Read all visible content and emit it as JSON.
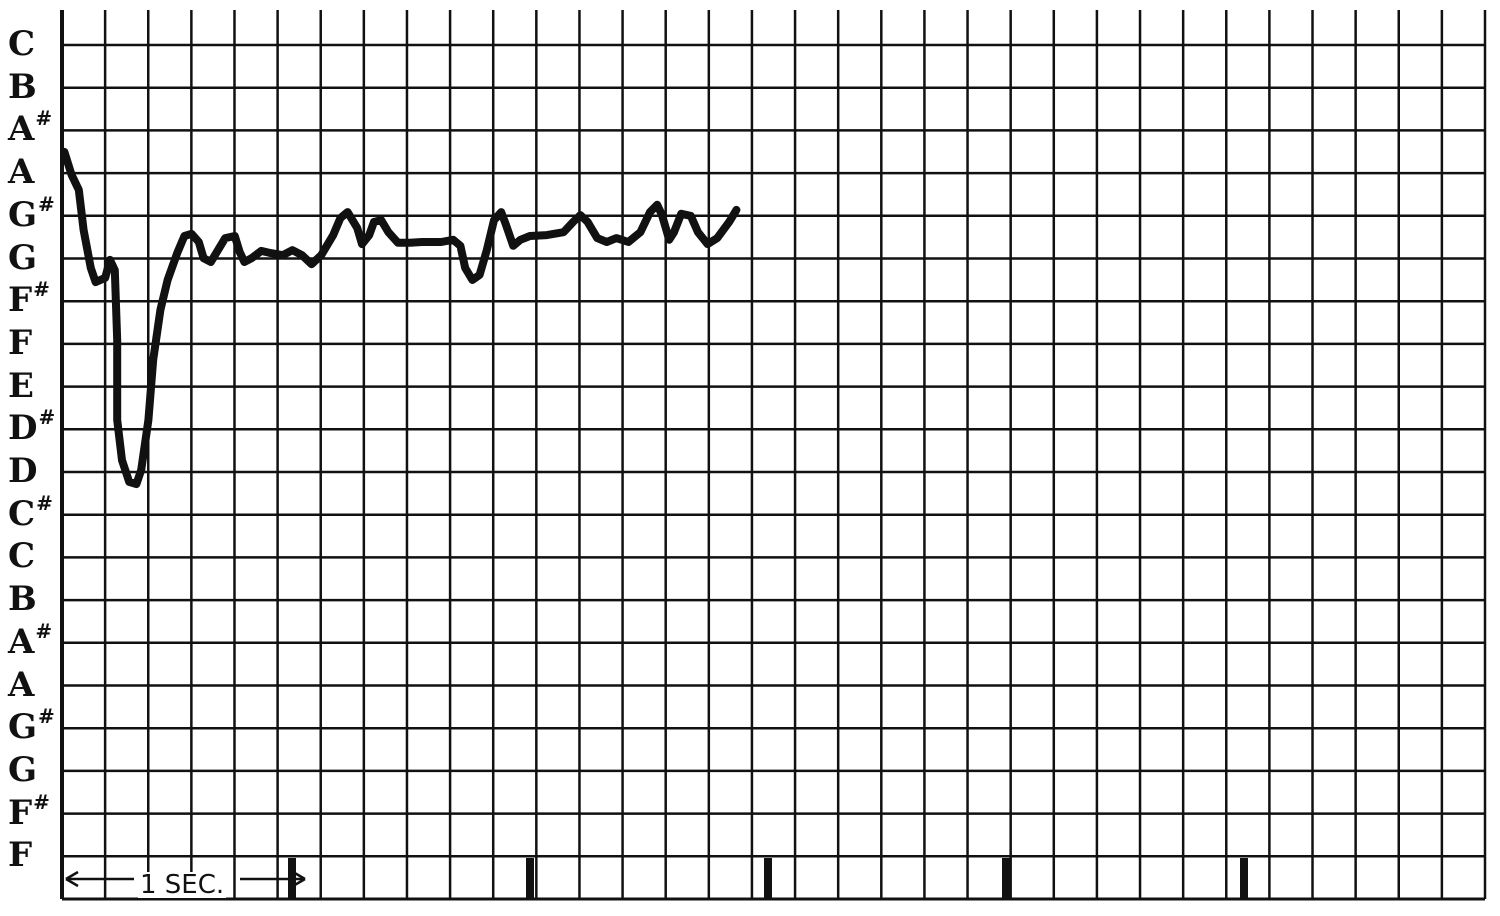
{
  "chart_data": {
    "type": "line",
    "title": "",
    "xlabel": "",
    "ylabel": "",
    "y_tick_labels": [
      "C",
      "B",
      "A#",
      "A",
      "G#",
      "G",
      "F#",
      "F",
      "E",
      "D#",
      "D",
      "C#",
      "C",
      "B",
      "A#",
      "A",
      "G#",
      "G",
      "F#",
      "F"
    ],
    "y_scale_note": "semitones above the lowest F (F = 0, top C = 19)",
    "ylim": [
      0,
      19
    ],
    "xlim_seconds": [
      0,
      5.93
    ],
    "time_scale_label": "1 SEC.",
    "second_markers": [
      1,
      2,
      3,
      4,
      5
    ],
    "grid": true,
    "line_color": "#111111",
    "series": [
      {
        "x": [
          0.01,
          0.04,
          0.07,
          0.09,
          0.12,
          0.14,
          0.18,
          0.2,
          0.22,
          0.23,
          0.23,
          0.25,
          0.28,
          0.31,
          0.33,
          0.36,
          0.38,
          0.41,
          0.44,
          0.48,
          0.51,
          0.54,
          0.57,
          0.59,
          0.62,
          0.65,
          0.68,
          0.72,
          0.74,
          0.76,
          0.79,
          0.83,
          0.87,
          0.92,
          0.96,
          1.0,
          1.04,
          1.08,
          1.13,
          1.16,
          1.19,
          1.23,
          1.25,
          1.28,
          1.3,
          1.33,
          1.36,
          1.4,
          1.45,
          1.5,
          1.58,
          1.63,
          1.66,
          1.68,
          1.71,
          1.74,
          1.77,
          1.8,
          1.83,
          1.85,
          1.88,
          1.91,
          1.95,
          2.02,
          2.09,
          2.13,
          2.16,
          2.19,
          2.23,
          2.27,
          2.31,
          2.36,
          2.41,
          2.45,
          2.48,
          2.5,
          2.53,
          2.55,
          2.58,
          2.62,
          2.65,
          2.69,
          2.73,
          2.78,
          2.81
        ],
        "y": [
          16.49,
          15.95,
          15.6,
          14.66,
          13.77,
          13.44,
          13.54,
          13.96,
          13.72,
          12.08,
          10.21,
          9.27,
          8.76,
          8.71,
          9.04,
          10.21,
          11.62,
          12.79,
          13.49,
          14.12,
          14.52,
          14.57,
          14.38,
          14.0,
          13.91,
          14.19,
          14.47,
          14.52,
          14.15,
          13.91,
          14.0,
          14.17,
          14.12,
          14.07,
          14.19,
          14.07,
          13.86,
          14.07,
          14.54,
          14.94,
          15.08,
          14.71,
          14.33,
          14.54,
          14.85,
          14.89,
          14.61,
          14.36,
          14.36,
          14.38,
          14.38,
          14.43,
          14.29,
          13.77,
          13.49,
          13.61,
          14.19,
          14.89,
          15.08,
          14.78,
          14.29,
          14.43,
          14.52,
          14.54,
          14.61,
          14.85,
          15.01,
          14.85,
          14.47,
          14.38,
          14.47,
          14.38,
          14.61,
          15.08,
          15.25,
          15.01,
          14.43,
          14.61,
          15.04,
          14.99,
          14.61,
          14.33,
          14.47,
          14.85,
          15.13
        ]
      }
    ]
  }
}
